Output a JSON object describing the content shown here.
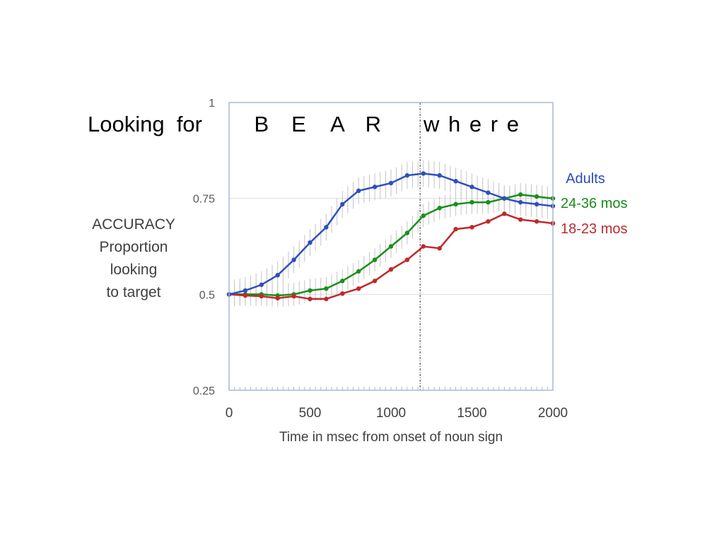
{
  "chart_data": {
    "type": "line",
    "title": "Looking  for",
    "xlabel": "Time in msec from onset of noun sign",
    "ylabel_lines": [
      "ACCURACY",
      "Proportion",
      "looking",
      "to target"
    ],
    "xlim": [
      0,
      2000
    ],
    "ylim": [
      0.25,
      1
    ],
    "x_ticks": [
      0,
      500,
      1000,
      1500,
      2000
    ],
    "y_ticks": [
      0.25,
      0.5,
      0.75,
      1
    ],
    "y_tick_labels": [
      "0.25",
      "0.5",
      "0.75",
      "1"
    ],
    "grid": true,
    "legend": "right",
    "annotations": {
      "sign_letters": [
        "B",
        "E",
        "A",
        "R"
      ],
      "sign_letter_positions": [
        200,
        430,
        670,
        890
      ],
      "word": "w h e r e",
      "word_position": 1500,
      "divider_x": 1180
    },
    "x": [
      0,
      100,
      200,
      300,
      400,
      500,
      600,
      700,
      800,
      900,
      1000,
      1100,
      1200,
      1300,
      1400,
      1500,
      1600,
      1700,
      1800,
      1900,
      2000
    ],
    "series": [
      {
        "name": "Adults",
        "color": "#2f4fc0",
        "label_color": "#2e4bb5",
        "values": [
          0.5,
          0.51,
          0.525,
          0.55,
          0.59,
          0.635,
          0.675,
          0.735,
          0.77,
          0.78,
          0.79,
          0.81,
          0.815,
          0.81,
          0.795,
          0.78,
          0.765,
          0.75,
          0.74,
          0.735,
          0.73
        ],
        "error": 0.035
      },
      {
        "name": "24-36 mos",
        "color": "#1a8f1a",
        "label_color": "#1a8a1a",
        "values": [
          0.5,
          0.5,
          0.5,
          0.497,
          0.5,
          0.51,
          0.515,
          0.535,
          0.56,
          0.59,
          0.625,
          0.66,
          0.705,
          0.725,
          0.735,
          0.74,
          0.74,
          0.75,
          0.76,
          0.755,
          0.75
        ],
        "error": 0.03
      },
      {
        "name": "18-23 mos",
        "color": "#c0282c",
        "label_color": "#c0282c",
        "values": [
          0.5,
          0.497,
          0.495,
          0.49,
          0.495,
          0.488,
          0.488,
          0.502,
          0.515,
          0.535,
          0.565,
          0.59,
          0.625,
          0.62,
          0.67,
          0.675,
          0.69,
          0.71,
          0.695,
          0.69,
          0.685
        ],
        "error": 0.0
      }
    ]
  }
}
